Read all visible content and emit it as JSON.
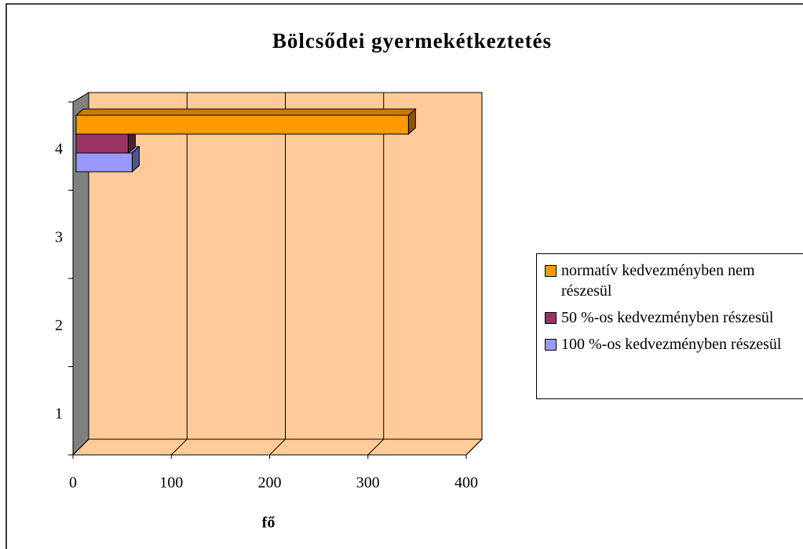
{
  "chart_data": {
    "type": "bar3d_horizontal",
    "title": "Bölcsődei gyermekétkeztetés",
    "xlabel": "fő",
    "categories": [
      "1",
      "2",
      "3",
      "4"
    ],
    "series": [
      {
        "name": "normatív kedvezményben nem részesül",
        "color": "#ff9900",
        "values": [
          null,
          null,
          null,
          338
        ]
      },
      {
        "name": "50 %-os kedvezményben részesül",
        "color": "#993366",
        "values": [
          null,
          null,
          null,
          53
        ]
      },
      {
        "name": "100 %-os kedvezményben részesül",
        "color": "#9999ff",
        "values": [
          null,
          null,
          null,
          57
        ]
      }
    ],
    "xlim": [
      0,
      400
    ],
    "xticks": [
      0,
      100,
      200,
      300,
      400
    ],
    "grid": true,
    "legend": "right"
  }
}
